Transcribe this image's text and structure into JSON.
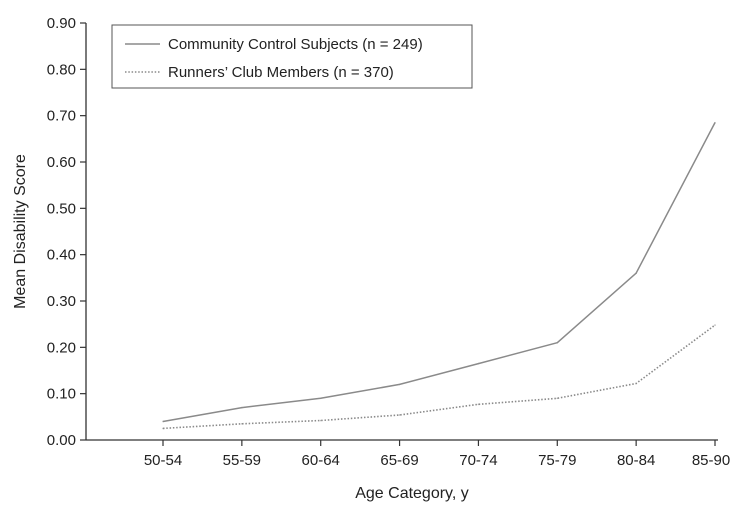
{
  "chart_data": {
    "type": "line",
    "title": "",
    "xlabel": "Age Category, y",
    "ylabel": "Mean Disability Score",
    "categories": [
      "50-54",
      "55-59",
      "60-64",
      "65-69",
      "70-74",
      "75-79",
      "80-84",
      "85-90"
    ],
    "ylim": [
      0,
      0.9
    ],
    "yticks": [
      "0.00",
      "0.10",
      "0.20",
      "0.30",
      "0.40",
      "0.50",
      "0.60",
      "0.70",
      "0.80",
      "0.90"
    ],
    "grid": false,
    "legend_position": "top-left",
    "series": [
      {
        "name": "Community Control Subjects (n = 249)",
        "style": "solid",
        "color": "#8a8a8a",
        "values": [
          0.04,
          0.07,
          0.09,
          0.12,
          0.165,
          0.21,
          0.36,
          0.685
        ]
      },
      {
        "name": "Runners’ Club Members (n = 370)",
        "style": "dotted",
        "color": "#8a8a8a",
        "values": [
          0.025,
          0.035,
          0.042,
          0.054,
          0.077,
          0.09,
          0.122,
          0.248
        ]
      }
    ]
  }
}
